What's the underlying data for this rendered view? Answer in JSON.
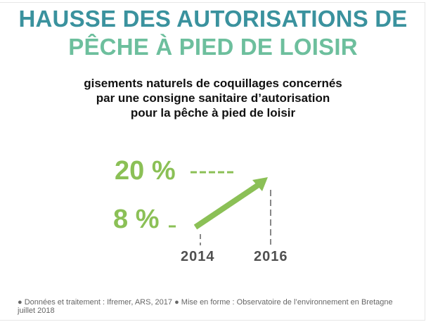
{
  "title": {
    "line1": "HAUSSE DES AUTORISATIONS DE",
    "line2": "PÊCHE À PIED DE LOISIR"
  },
  "subtitle": [
    "gisements naturels de coquillages concernés",
    "par une consigne sanitaire d’autorisation",
    "pour la pêche à pied de loisir"
  ],
  "chart_data": {
    "type": "line",
    "x": [
      "2014",
      "2016"
    ],
    "values": [
      8,
      20
    ],
    "value_labels": [
      "8 %",
      "20 %"
    ],
    "tick_labels": [
      "2014",
      "2016"
    ],
    "colors": {
      "line": "#8bc056",
      "guides": "#888888",
      "years": "#505050"
    }
  },
  "colors": {
    "title1": "#3a929e",
    "title2": "#6dbf9d"
  },
  "footer": "● Données et traitement : Ifremer, ARS, 2017 ● Mise en forme : Observatoire de l’environnement en Bretagne juillet 2018"
}
